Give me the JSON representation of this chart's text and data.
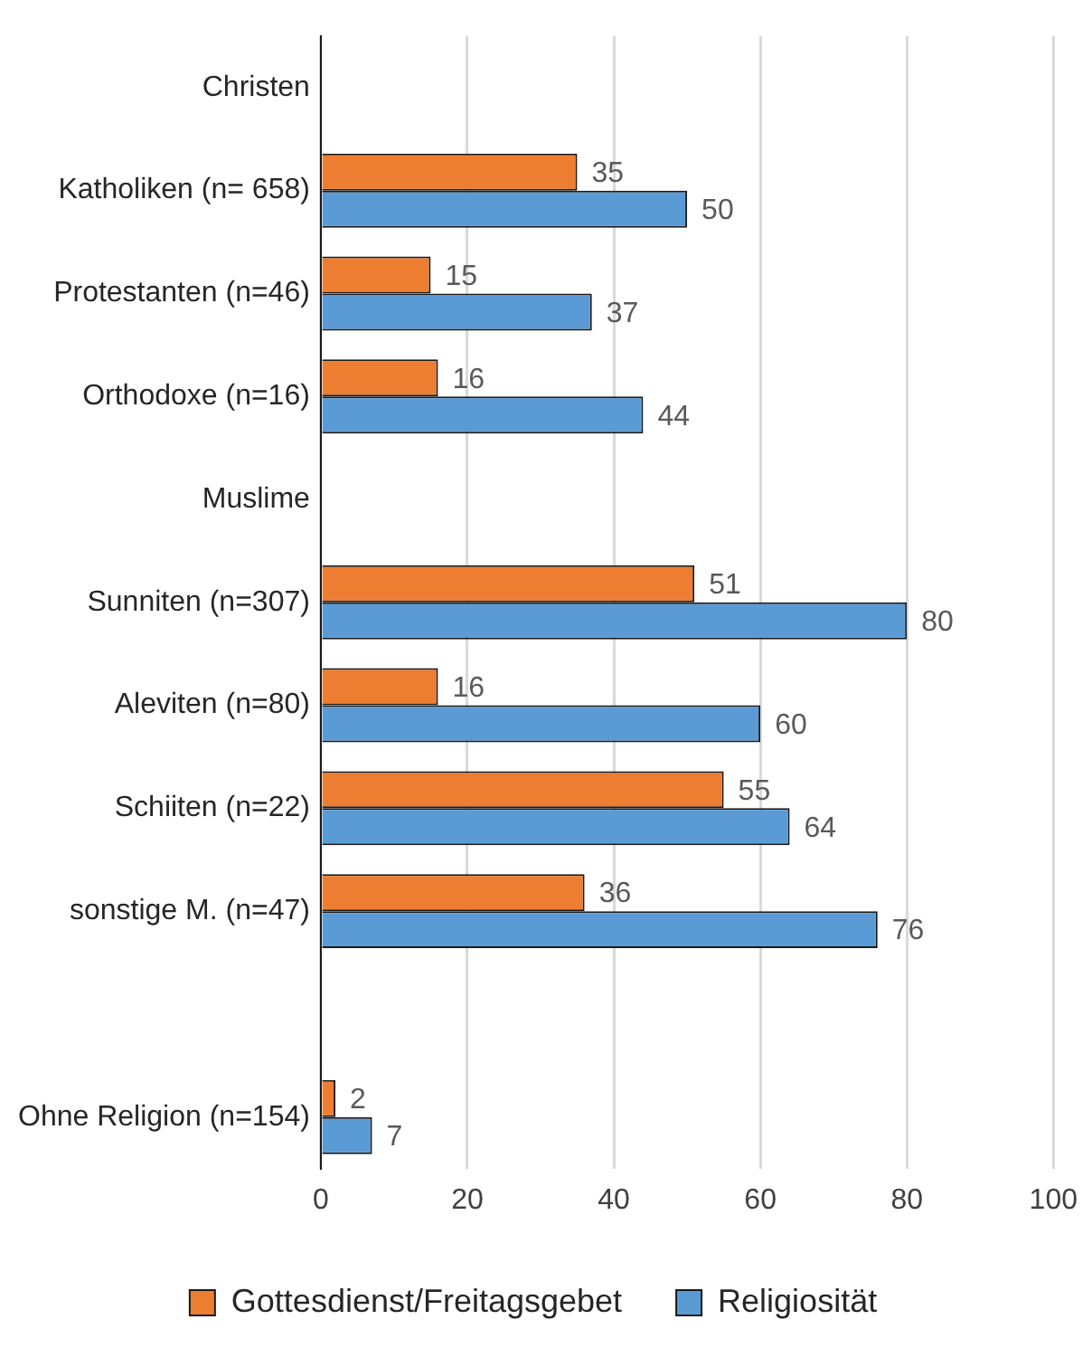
{
  "chart_data": {
    "type": "bar",
    "orientation": "horizontal",
    "categories": [
      "Christen",
      "Katholiken (n= 658)",
      "Protestanten (n=46)",
      "Orthodoxe (n=16)",
      "Muslime",
      "Sunniten (n=307)",
      "Aleviten (n=80)",
      "Schiiten (n=22)",
      "sonstige M. (n=47)",
      null,
      "Ohne Religion (n=154)"
    ],
    "series": [
      {
        "name": "Gottesdienst/Freitagsgebet",
        "color": "#ed7d31",
        "values": [
          null,
          35,
          15,
          16,
          null,
          51,
          16,
          55,
          36,
          null,
          2
        ]
      },
      {
        "name": "Religiosität",
        "color": "#5b9bd5",
        "values": [
          null,
          50,
          37,
          44,
          null,
          80,
          60,
          64,
          76,
          null,
          7
        ]
      }
    ],
    "xlim": [
      0,
      100
    ],
    "xticks": [
      0,
      20,
      40,
      60,
      80,
      100
    ],
    "grid": "x",
    "legend": "bottom",
    "data_labels": true
  }
}
